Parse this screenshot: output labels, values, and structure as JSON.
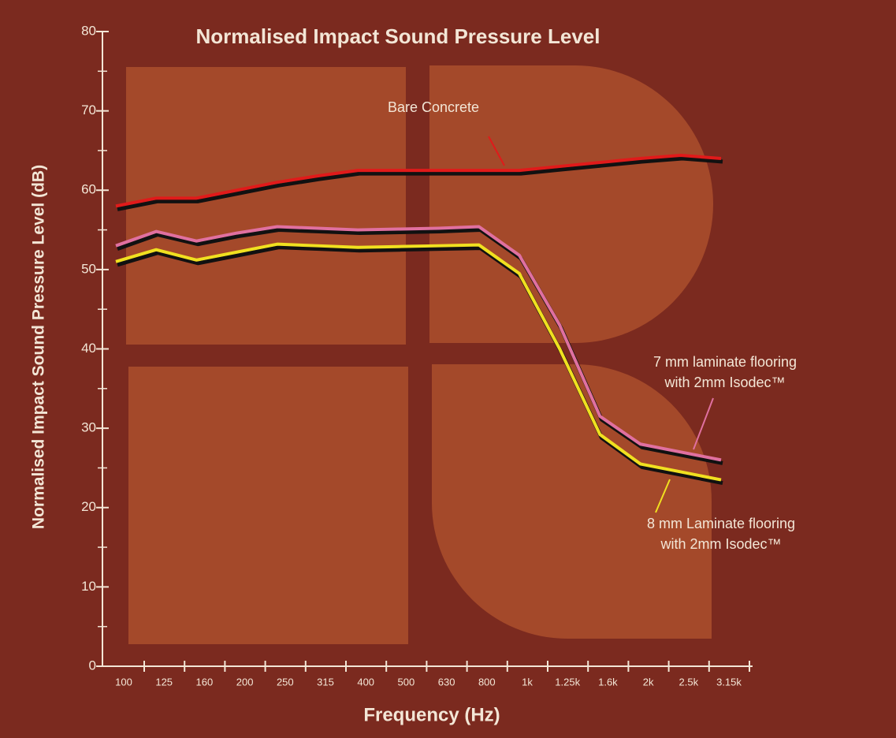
{
  "chart_data": {
    "type": "line",
    "title": "Normalised Impact Sound Pressure Level",
    "y_label": "Normalised Impact Sound Pressure Level (dB)",
    "x_label": "Frequency (Hz)",
    "categories": [
      "100",
      "125",
      "160",
      "200",
      "250",
      "315",
      "400",
      "500",
      "630",
      "800",
      "1k",
      "1.25k",
      "1.6k",
      "2k",
      "2.5k",
      "3.15k"
    ],
    "ylim": [
      0,
      80
    ],
    "yticks": [
      0,
      10,
      20,
      30,
      40,
      50,
      60,
      70,
      80
    ],
    "series": [
      {
        "name": [
          "Bare Concrete"
        ],
        "color": "#e01a1a",
        "values": [
          58,
          59,
          59,
          60,
          61,
          61.8,
          62.5,
          62.5,
          62.5,
          62.5,
          62.5,
          63,
          63.5,
          64,
          64.4,
          64
        ]
      },
      {
        "name": [
          "7 mm laminate flooring",
          "with 2mm Isodec™"
        ],
        "color": "#e070a0",
        "values": [
          53,
          54.8,
          53.6,
          54.6,
          55.4,
          55.2,
          55,
          55.1,
          55.2,
          55.4,
          51.8,
          43,
          31.5,
          28,
          27,
          26
        ]
      },
      {
        "name": [
          "8 mm Laminate flooring",
          "with 2mm Isodec™"
        ],
        "color": "#f0e020",
        "values": [
          51,
          52.5,
          51.2,
          52.2,
          53.2,
          53,
          52.8,
          52.9,
          53,
          53.1,
          49.5,
          40,
          29.2,
          25.5,
          24.5,
          23.5
        ]
      }
    ]
  }
}
